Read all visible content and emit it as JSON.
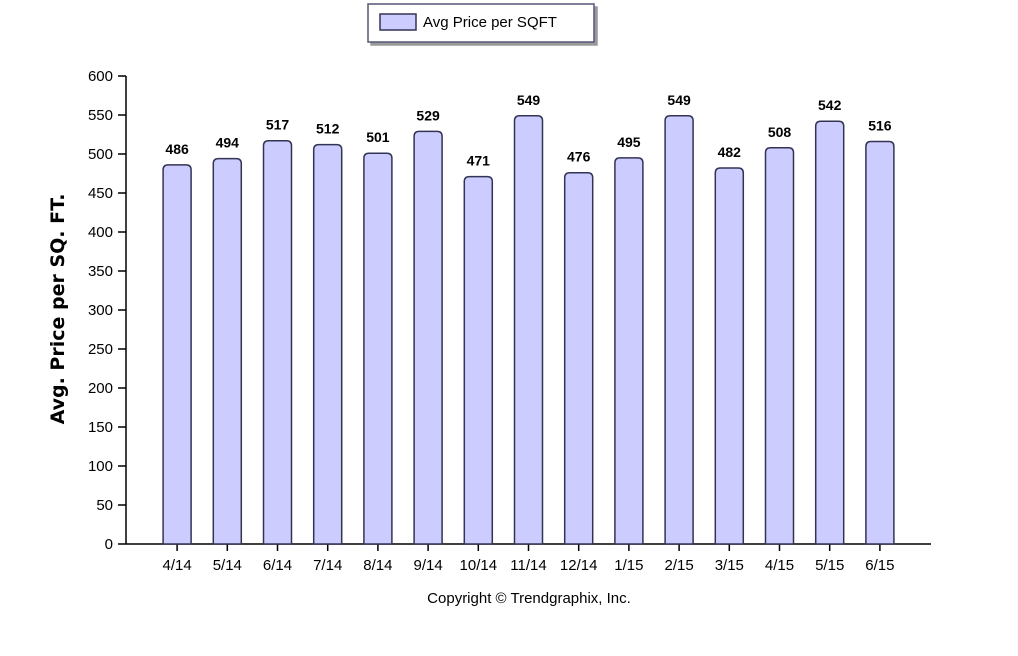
{
  "chart_data": {
    "type": "bar",
    "categories": [
      "4/14",
      "5/14",
      "6/14",
      "7/14",
      "8/14",
      "9/14",
      "10/14",
      "11/14",
      "12/14",
      "1/15",
      "2/15",
      "3/15",
      "4/15",
      "5/15",
      "6/15"
    ],
    "series": [
      {
        "name": "Avg Price per SQFT",
        "values": [
          486,
          494,
          517,
          512,
          501,
          529,
          471,
          549,
          476,
          495,
          549,
          482,
          508,
          542,
          516
        ],
        "color": "#ccccff"
      }
    ],
    "value_labels": [
      "486",
      "494",
      "517",
      "512",
      "501",
      "529",
      "471",
      "549",
      "476",
      "495",
      "549",
      "482",
      "508",
      "542",
      "516"
    ],
    "ylabel": "Avg. Price per SQ. FT.",
    "xlabel": "",
    "ylim": [
      0,
      600
    ],
    "yticks": [
      0,
      50,
      100,
      150,
      200,
      250,
      300,
      350,
      400,
      450,
      500,
      550,
      600
    ],
    "grid": false,
    "legend_position": "top-center",
    "bar_outline_color": "#333355",
    "copyright": "Copyright © Trendgraphix, Inc."
  }
}
